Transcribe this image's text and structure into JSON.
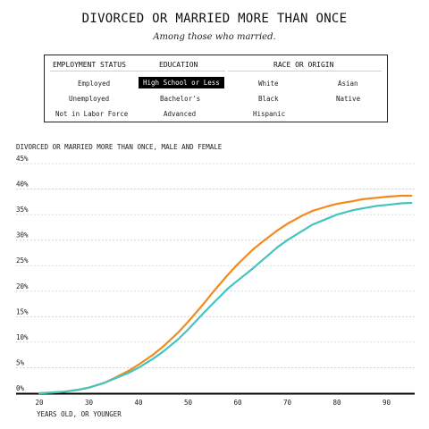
{
  "header": {
    "title": "DIVORCED OR MARRIED MORE THAN ONCE",
    "subtitle": "Among those who married."
  },
  "filters": {
    "employment": {
      "label": "EMPLOYMENT STATUS",
      "options": [
        "Employed",
        "Unemployed",
        "Not in Labor Force"
      ]
    },
    "education": {
      "label": "EDUCATION",
      "options": [
        "High School or Less",
        "Bachelor's",
        "Advanced"
      ],
      "selected": "High School or Less"
    },
    "race": {
      "label": "RACE OR ORIGIN",
      "options": [
        "White",
        "Asian",
        "Black",
        "Native",
        "Hispanic"
      ]
    }
  },
  "chart_title": "DIVORCED OR MARRIED MORE THAN ONCE, MALE AND FEMALE",
  "colors": {
    "orange": "#f28a1e",
    "teal": "#45c3bd",
    "axis": "#000000",
    "grid": "#bdbdbd"
  },
  "chart_data": {
    "type": "line",
    "title": "DIVORCED OR MARRIED MORE THAN ONCE, MALE AND FEMALE",
    "xlabel": "YEARS OLD, OR YOUNGER",
    "ylabel": "",
    "xlim": [
      17,
      96
    ],
    "ylim": [
      0,
      45
    ],
    "x_ticks": [
      20,
      30,
      40,
      50,
      60,
      70,
      80,
      90
    ],
    "y_ticks": [
      0,
      5,
      10,
      15,
      20,
      25,
      30,
      35,
      40,
      45
    ],
    "y_tick_labels": [
      "0%",
      "5%",
      "10%",
      "15%",
      "20%",
      "25%",
      "30%",
      "35%",
      "40%",
      "45%"
    ],
    "grid": "horizontal dotted",
    "series": [
      {
        "color": "orange",
        "x": [
          20,
          22,
          25,
          28,
          30,
          33,
          35,
          38,
          40,
          43,
          45,
          48,
          50,
          53,
          55,
          58,
          60,
          63,
          65,
          68,
          70,
          73,
          75,
          78,
          80,
          83,
          85,
          88,
          90,
          93,
          95
        ],
        "y": [
          0,
          0.1,
          0.3,
          0.7,
          1.1,
          2.0,
          2.9,
          4.4,
          5.6,
          7.6,
          9.2,
          11.9,
          14.0,
          17.4,
          19.8,
          23.2,
          25.3,
          28.1,
          29.7,
          31.9,
          33.2,
          34.8,
          35.7,
          36.6,
          37.1,
          37.6,
          38.0,
          38.3,
          38.5,
          38.7,
          38.7
        ]
      },
      {
        "color": "teal",
        "x": [
          20,
          22,
          25,
          28,
          30,
          33,
          35,
          38,
          40,
          43,
          45,
          48,
          50,
          53,
          55,
          58,
          60,
          63,
          65,
          68,
          70,
          73,
          75,
          78,
          80,
          83,
          85,
          88,
          90,
          93,
          95
        ],
        "y": [
          0,
          0.1,
          0.3,
          0.7,
          1.1,
          2.0,
          2.8,
          4.0,
          5.0,
          6.8,
          8.2,
          10.6,
          12.5,
          15.6,
          17.6,
          20.5,
          22.1,
          24.4,
          26.1,
          28.6,
          30.0,
          31.8,
          33.0,
          34.2,
          35.0,
          35.8,
          36.2,
          36.7,
          36.9,
          37.2,
          37.3
        ]
      }
    ]
  }
}
